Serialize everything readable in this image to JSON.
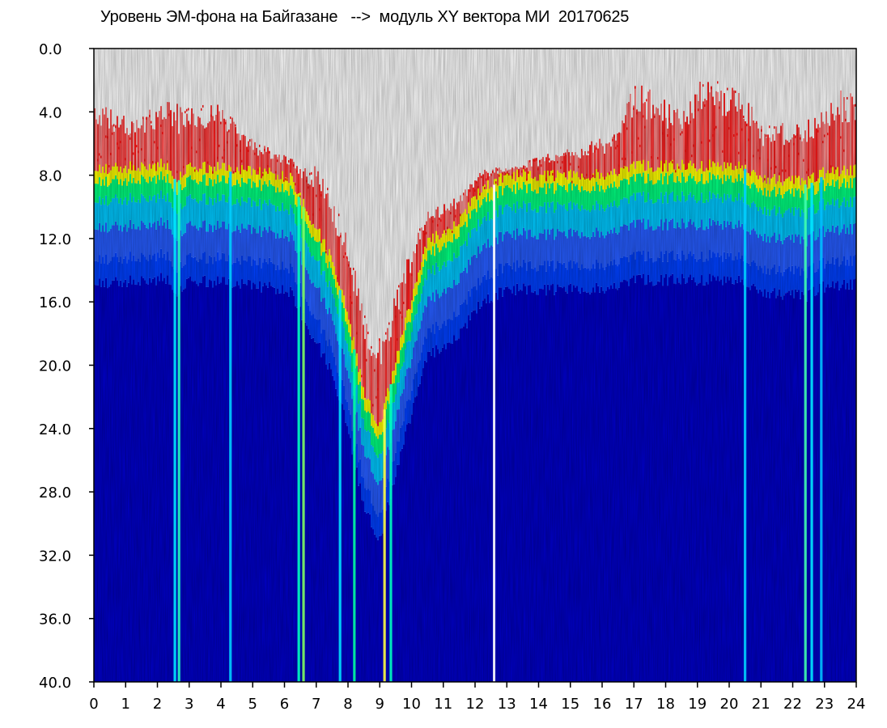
{
  "chart_data": {
    "type": "heatmap",
    "title": "Уровень ЭМ-фона на Байгазане   -->  модуль XY вектора МИ  20170625",
    "xlabel": "",
    "ylabel": "",
    "xlim": [
      0,
      24
    ],
    "ylim": [
      0,
      40
    ],
    "y_inverted": true,
    "x_ticks": [
      "0",
      "1",
      "2",
      "3",
      "4",
      "5",
      "6",
      "7",
      "8",
      "9",
      "10",
      "11",
      "12",
      "13",
      "14",
      "15",
      "16",
      "17",
      "18",
      "19",
      "20",
      "21",
      "22",
      "23",
      "24"
    ],
    "y_ticks": [
      "0.0",
      "4.0",
      "8.0",
      "12.0",
      "16.0",
      "20.0",
      "24.0",
      "28.0",
      "32.0",
      "36.0",
      "40.0"
    ],
    "grid": false,
    "legend": "none",
    "colorscale": [
      "#0000c8",
      "#0040ff",
      "#00c8ff",
      "#00ff80",
      "#ffff00",
      "#ff0000"
    ],
    "background_level_top": [
      [
        0,
        7.8
      ],
      [
        2.4,
        7.5
      ],
      [
        2.6,
        8.5
      ],
      [
        3.0,
        7.6
      ],
      [
        4.5,
        7.8
      ],
      [
        6.2,
        8.3
      ],
      [
        6.6,
        10.0
      ],
      [
        7.0,
        11.5
      ],
      [
        7.5,
        13.5
      ],
      [
        8.0,
        17.0
      ],
      [
        8.5,
        22.0
      ],
      [
        9.0,
        24.0
      ],
      [
        9.5,
        20.0
      ],
      [
        10.0,
        16.0
      ],
      [
        10.5,
        12.5
      ],
      [
        11.5,
        11.0
      ],
      [
        12.2,
        9.0
      ],
      [
        13.0,
        8.2
      ],
      [
        16.0,
        8.2
      ],
      [
        17.0,
        7.6
      ],
      [
        20.5,
        7.6
      ],
      [
        21.0,
        8.4
      ],
      [
        22.5,
        8.6
      ],
      [
        23.0,
        8.0
      ],
      [
        24,
        7.8
      ]
    ],
    "noise_peak_tops": [
      [
        0.2,
        3.2
      ],
      [
        1.0,
        4.3
      ],
      [
        2.3,
        3.3
      ],
      [
        3.0,
        3.6
      ],
      [
        4.0,
        3.5
      ],
      [
        5.2,
        6.0
      ],
      [
        5.8,
        6.5
      ],
      [
        7.2,
        7.5
      ],
      [
        8.0,
        12.0
      ],
      [
        8.8,
        19.0
      ],
      [
        9.5,
        15.5
      ],
      [
        10.3,
        10.5
      ],
      [
        11.5,
        9.3
      ],
      [
        12.3,
        7.5
      ],
      [
        13.0,
        7.5
      ],
      [
        14.5,
        6.5
      ],
      [
        15.5,
        6.0
      ],
      [
        16.5,
        5.0
      ],
      [
        17.0,
        2.0
      ],
      [
        17.5,
        2.5
      ],
      [
        18.5,
        4.0
      ],
      [
        19.0,
        2.0
      ],
      [
        20.2,
        2.0
      ],
      [
        21.0,
        4.5
      ],
      [
        22.0,
        4.8
      ],
      [
        23.0,
        3.8
      ],
      [
        23.5,
        2.5
      ],
      [
        24,
        3.0
      ]
    ],
    "vertical_streaks": [
      {
        "x": 2.55,
        "color": "#00e8ff"
      },
      {
        "x": 2.68,
        "color": "#20ffc0"
      },
      {
        "x": 4.3,
        "color": "#00d0ff"
      },
      {
        "x": 6.45,
        "color": "#00ffc0"
      },
      {
        "x": 6.6,
        "color": "#80ff60"
      },
      {
        "x": 7.75,
        "color": "#00e0ff"
      },
      {
        "x": 8.2,
        "color": "#00ffa0"
      },
      {
        "x": 9.15,
        "color": "#ffff40"
      },
      {
        "x": 9.35,
        "color": "#00ffc0"
      },
      {
        "x": 12.6,
        "color": "#ffffff"
      },
      {
        "x": 20.5,
        "color": "#00d0ff"
      },
      {
        "x": 22.4,
        "color": "#40ffb0"
      },
      {
        "x": 22.6,
        "color": "#00e8ff"
      },
      {
        "x": 22.9,
        "color": "#00c0ff"
      }
    ]
  }
}
